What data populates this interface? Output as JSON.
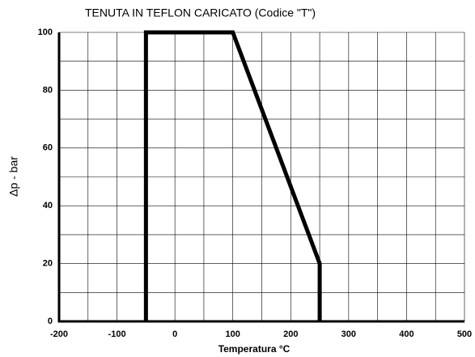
{
  "chart_data": {
    "type": "line",
    "title": "TENUTA IN TEFLON CARICATO (Codice \"T\")",
    "x_label": "Temperatura °C",
    "y_label": "Δp - bar",
    "series": [
      {
        "color": "#000000",
        "x": [
          -50,
          -50,
          100,
          250,
          250
        ],
        "values": [
          0,
          100,
          100,
          20,
          0
        ]
      }
    ],
    "xlim": [
      -200,
      500
    ],
    "xticks": [
      -200,
      -100,
      0,
      100,
      200,
      300,
      400,
      500
    ],
    "x_minor_ticks": [
      -150,
      -50,
      50,
      150,
      250,
      350,
      450
    ],
    "ylim": [
      0,
      100
    ],
    "yticks": [
      0,
      20,
      40,
      60,
      80,
      100
    ],
    "y_minor_ticks": [
      10,
      30,
      50,
      70,
      90
    ],
    "grid": true
  }
}
